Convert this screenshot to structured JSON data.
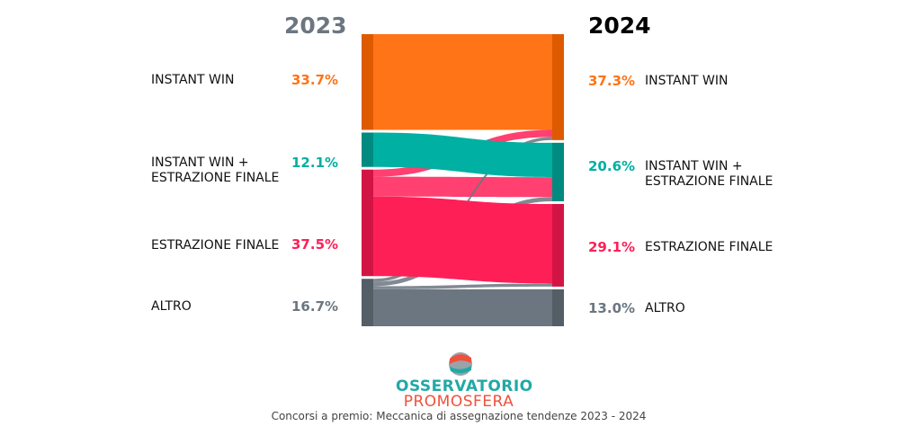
{
  "chart_data": {
    "type": "sankey",
    "columns": [
      "2023",
      "2024"
    ],
    "caption": "Concorsi a premio: Meccanica di assegnazione tendenze 2023 - 2024",
    "categories": [
      "INSTANT WIN",
      "INSTANT WIN +\nESTRAZIONE FINALE",
      "ESTRAZIONE FINALE",
      "ALTRO"
    ],
    "colors": [
      "#ff7417",
      "#00b0a2",
      "#ff1f57",
      "#6b7680"
    ],
    "dark_colors": [
      "#de5a00",
      "#008a80",
      "#d21444",
      "#545e66"
    ],
    "values_2023": [
      "33.7%",
      "12.1%",
      "37.5%",
      "16.7%"
    ],
    "values_2024": [
      "37.3%",
      "20.6%",
      "29.1%",
      "13.0%"
    ],
    "left": [
      33.7,
      12.1,
      37.5,
      16.7
    ],
    "right": [
      37.3,
      20.6,
      29.1,
      13.0
    ],
    "flows": [
      {
        "from": 0,
        "to": 0,
        "value": 33.7
      },
      {
        "from": 1,
        "to": 1,
        "value": 12.1
      },
      {
        "from": 2,
        "to": 0,
        "value": 2.5
      },
      {
        "from": 2,
        "to": 1,
        "value": 7.0
      },
      {
        "from": 2,
        "to": 2,
        "value": 28.0
      },
      {
        "from": 3,
        "to": 0,
        "value": 1.1
      },
      {
        "from": 3,
        "to": 1,
        "value": 1.5
      },
      {
        "from": 3,
        "to": 2,
        "value": 1.1
      },
      {
        "from": 3,
        "to": 3,
        "value": 13.0
      }
    ]
  },
  "logo": {
    "line1": "OSSERVATORIO",
    "line2": "PROMOSFERA"
  }
}
